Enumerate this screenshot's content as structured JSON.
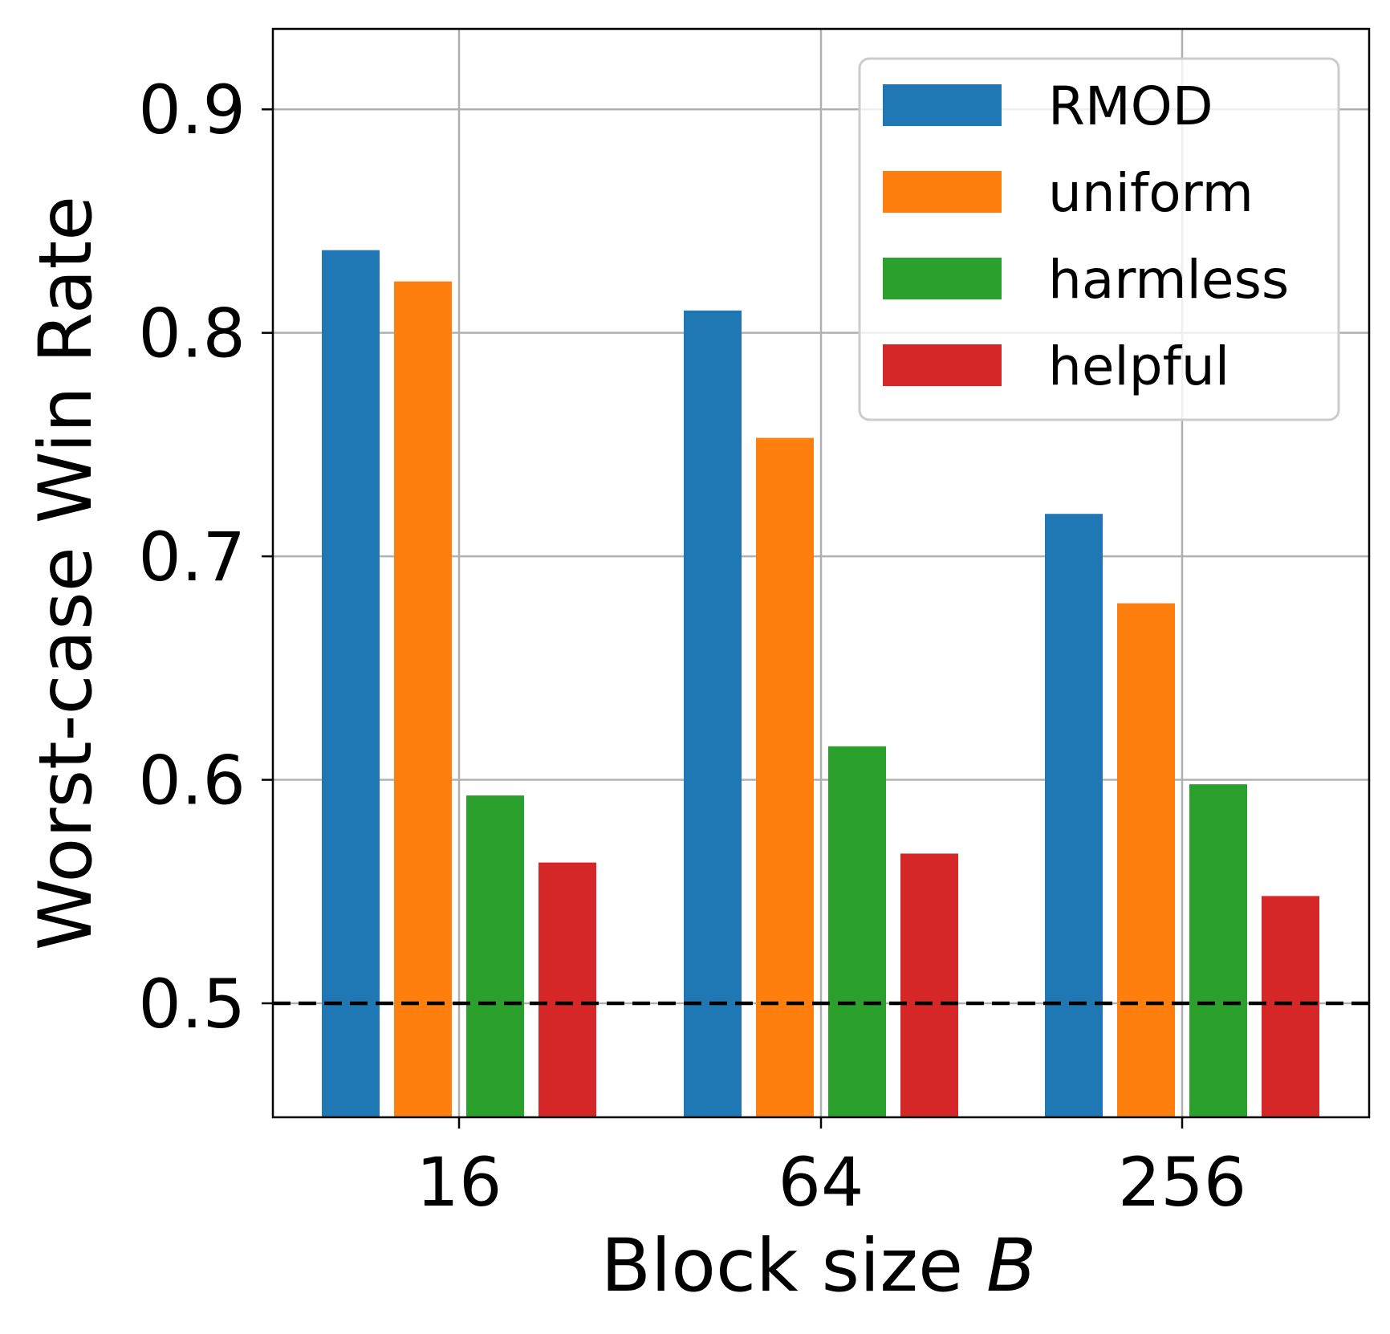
{
  "chart_data": {
    "type": "bar",
    "title": "",
    "xlabel": "Block size",
    "xlabel_var": "B",
    "ylabel": "Worst-case Win Rate",
    "categories": [
      "16",
      "64",
      "256"
    ],
    "series": [
      {
        "name": "RMOD",
        "color": "#1f77b4",
        "values": [
          0.837,
          0.81,
          0.719
        ]
      },
      {
        "name": "uniform",
        "color": "#ff7f0e",
        "values": [
          0.823,
          0.753,
          0.679
        ]
      },
      {
        "name": "harmless",
        "color": "#2ca02c",
        "values": [
          0.593,
          0.615,
          0.598
        ]
      },
      {
        "name": "helpful",
        "color": "#d62728",
        "values": [
          0.563,
          0.567,
          0.548
        ]
      }
    ],
    "ylim": [
      0.449,
      0.936
    ],
    "yticks": [
      0.5,
      0.6,
      0.7,
      0.8,
      0.9
    ],
    "ytick_labels": [
      "0.5",
      "0.6",
      "0.7",
      "0.8",
      "0.9"
    ],
    "reference_line": {
      "y": 0.5,
      "style": "dashed",
      "color": "#000000"
    },
    "grid": true,
    "legend_position": "top-right"
  }
}
